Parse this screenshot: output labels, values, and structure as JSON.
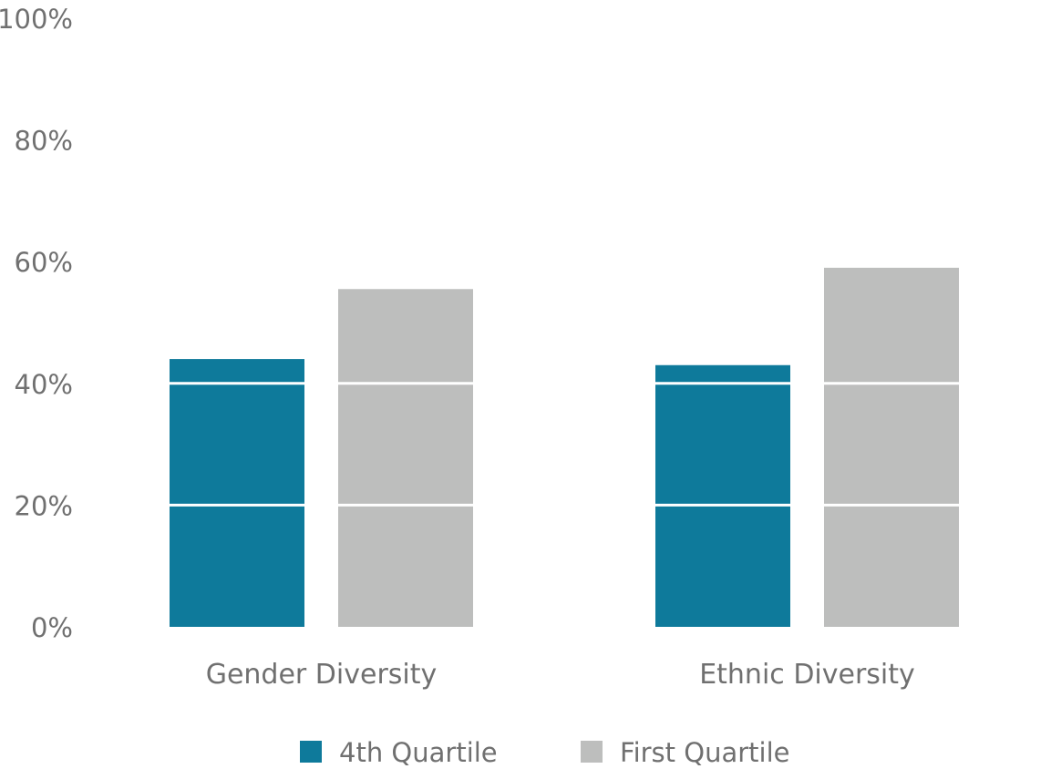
{
  "chart_data": {
    "type": "bar",
    "title": "",
    "xlabel": "",
    "ylabel": "",
    "categories": [
      "Gender Diversity",
      "Ethnic Diversity"
    ],
    "series": [
      {
        "name": "4th Quartile",
        "color": "#0e7a9b",
        "values": [
          44,
          43
        ]
      },
      {
        "name": "First Quartile",
        "color": "#bdbebd",
        "values": [
          55.5,
          59
        ]
      }
    ],
    "ylim": [
      0,
      100
    ],
    "yticks": [
      0,
      20,
      40,
      60,
      80,
      100
    ],
    "ytick_labels": [
      "0%",
      "20%",
      "40%",
      "60%",
      "80%",
      "100%"
    ],
    "grid": "horizontal white lines over bars",
    "legend": "bottom-center"
  }
}
